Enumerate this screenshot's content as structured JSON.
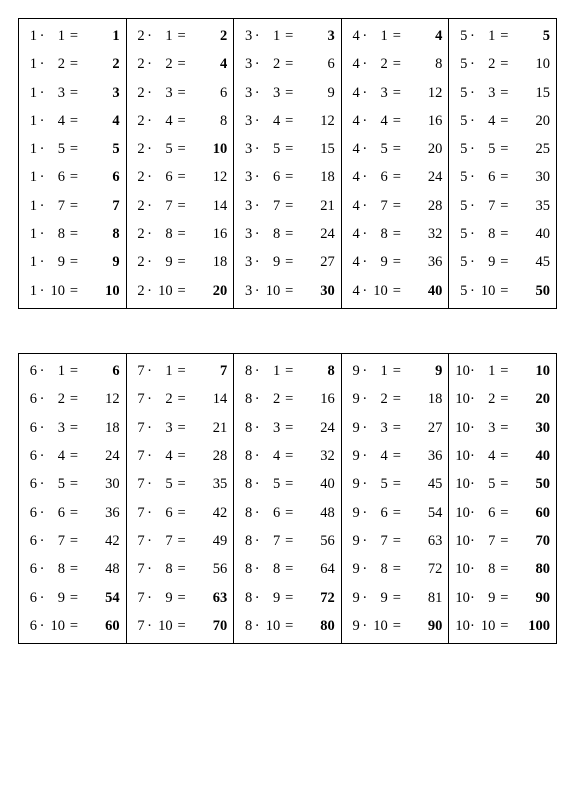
{
  "background_color": "#ffffff",
  "border_color": "#000000",
  "text_color": "#000000",
  "font_family": "Times New Roman, serif",
  "font_size_pt": 11,
  "dot_symbol": "·",
  "equals_symbol": "=",
  "tables": [
    {
      "columns": [
        {
          "factor": 1,
          "rows": [
            1,
            2,
            3,
            4,
            5,
            6,
            7,
            8,
            9,
            10
          ],
          "bold_results": [
            1,
            2,
            3,
            4,
            5,
            6,
            7,
            8,
            9,
            10
          ]
        },
        {
          "factor": 2,
          "rows": [
            1,
            2,
            3,
            4,
            5,
            6,
            7,
            8,
            9,
            10
          ],
          "bold_results": [
            1,
            2,
            5,
            10
          ]
        },
        {
          "factor": 3,
          "rows": [
            1,
            2,
            3,
            4,
            5,
            6,
            7,
            8,
            9,
            10
          ],
          "bold_results": [
            1,
            10
          ]
        },
        {
          "factor": 4,
          "rows": [
            1,
            2,
            3,
            4,
            5,
            6,
            7,
            8,
            9,
            10
          ],
          "bold_results": [
            1,
            10
          ]
        },
        {
          "factor": 5,
          "rows": [
            1,
            2,
            3,
            4,
            5,
            6,
            7,
            8,
            9,
            10
          ],
          "bold_results": [
            1,
            10
          ]
        }
      ]
    },
    {
      "columns": [
        {
          "factor": 6,
          "rows": [
            1,
            2,
            3,
            4,
            5,
            6,
            7,
            8,
            9,
            10
          ],
          "bold_results": [
            1,
            9,
            10
          ]
        },
        {
          "factor": 7,
          "rows": [
            1,
            2,
            3,
            4,
            5,
            6,
            7,
            8,
            9,
            10
          ],
          "bold_results": [
            1,
            9,
            10
          ]
        },
        {
          "factor": 8,
          "rows": [
            1,
            2,
            3,
            4,
            5,
            6,
            7,
            8,
            9,
            10
          ],
          "bold_results": [
            1,
            9,
            10
          ]
        },
        {
          "factor": 9,
          "rows": [
            1,
            2,
            3,
            4,
            5,
            6,
            7,
            8,
            9,
            10
          ],
          "bold_results": [
            1,
            10
          ]
        },
        {
          "factor": 10,
          "rows": [
            1,
            2,
            3,
            4,
            5,
            6,
            7,
            8,
            9,
            10
          ],
          "bold_results": [
            1,
            2,
            3,
            4,
            5,
            6,
            7,
            8,
            9,
            10
          ]
        }
      ]
    }
  ]
}
